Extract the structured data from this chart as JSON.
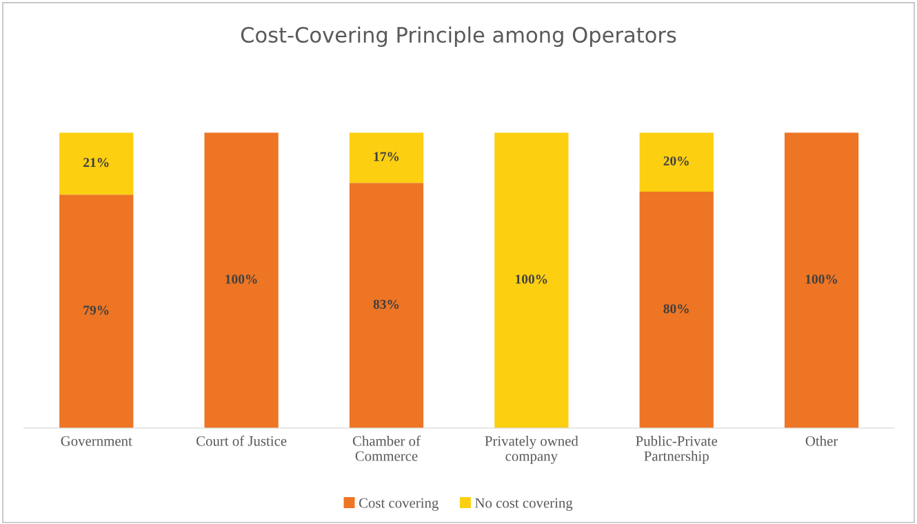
{
  "chart_data": {
    "type": "bar",
    "title": "Cost-Covering Principle among Operators",
    "stacked": true,
    "categories": [
      "Government",
      "Court of Justice",
      "Chamber of\nCommerce",
      "Privately owned\ncompany",
      "Public-Private\nPartnership",
      "Other"
    ],
    "series": [
      {
        "name": "Cost covering",
        "color": "#ed7524",
        "values": [
          79,
          100,
          83,
          0,
          80,
          100
        ],
        "value_labels": [
          "79%",
          "100%",
          "83%",
          null,
          "80%",
          "100%"
        ]
      },
      {
        "name": "No cost covering",
        "color": "#fccf10",
        "values": [
          21,
          0,
          17,
          100,
          20,
          0
        ],
        "value_labels": [
          "21%",
          null,
          "17%",
          "100%",
          "20%",
          null
        ]
      }
    ],
    "grid": false,
    "legend": "bottom"
  }
}
